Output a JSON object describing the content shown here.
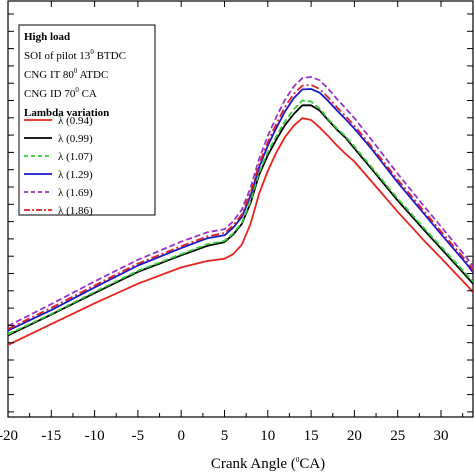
{
  "chart_data": {
    "type": "line",
    "xlabel": {
      "prefix": "Crank Angle (",
      "sup": "0",
      "suffix": "CA)"
    },
    "xlim": [
      -20,
      34
    ],
    "x_ticks": [
      "-20",
      "-15",
      "-10",
      "-5",
      "0",
      "5",
      "10",
      "15",
      "20",
      "25",
      "30"
    ],
    "ylim": [
      0,
      100
    ],
    "legend_position": "top-left",
    "annotations": [
      {
        "text": "High load",
        "bold": true
      },
      {
        "prefix": "SOI of pilot 13",
        "sup": "0",
        "suffix": " BTDC",
        "bold": false
      },
      {
        "prefix": "CNG IT 80",
        "sup": "0",
        "suffix": " ATDC",
        "bold": false
      },
      {
        "prefix": "CNG ID 70",
        "sup": "0",
        "suffix": " CA",
        "bold": false
      },
      {
        "text": "Lambda variation",
        "bold": true
      }
    ],
    "x": [
      -20,
      -15,
      -10,
      -5,
      0,
      3,
      5,
      6,
      7,
      8,
      9,
      10,
      11,
      12,
      13,
      14,
      15,
      16,
      17,
      18,
      19,
      20,
      22,
      25,
      28,
      30,
      33,
      34
    ],
    "series": [
      {
        "name": "λ (0.94)",
        "color": "#e8231d",
        "dash": "solid",
        "values": [
          34,
          39.5,
          45,
          50.2,
          54.5,
          56.2,
          56.8,
          58,
          60.5,
          66,
          74,
          80,
          85,
          89,
          92,
          94,
          93.5,
          91.5,
          89.2,
          86.7,
          84.5,
          82.5,
          77.2,
          69.2,
          61.7,
          57,
          49.7,
          47.2
        ]
      },
      {
        "name": "λ (0.99)",
        "color": "#000000",
        "dash": "solid",
        "values": [
          36.5,
          42,
          47.7,
          53.3,
          57.7,
          60.2,
          61.2,
          63.2,
          66,
          71.5,
          79,
          84.2,
          88.4,
          92.2,
          95.1,
          97.4,
          97.4,
          96,
          93.4,
          90.9,
          88.8,
          86,
          80.5,
          72.2,
          64.5,
          59.5,
          52,
          49.4
        ]
      },
      {
        "name": "λ (1.07)",
        "color": "#33cc33",
        "dash": "dash",
        "values": [
          36.8,
          42.2,
          48,
          53.6,
          58,
          60.6,
          61.5,
          63.5,
          66.3,
          72,
          79.6,
          85,
          89.3,
          93.2,
          96.3,
          98.7,
          98.4,
          96.5,
          93.7,
          91.2,
          89.2,
          86.5,
          81,
          72.7,
          65,
          60,
          52.5,
          50
        ]
      },
      {
        "name": "λ (1.29)",
        "color": "#1a1acc",
        "dash": "solid",
        "values": [
          37.8,
          43.2,
          49.2,
          55,
          59.6,
          62.2,
          63,
          65,
          67.8,
          73.5,
          81,
          86.7,
          91.5,
          95.8,
          99.3,
          101.6,
          101.7,
          100.7,
          98.5,
          96,
          93.7,
          91.2,
          85.8,
          77,
          68.8,
          63.3,
          55.3,
          52.3
        ]
      },
      {
        "name": "λ (1.69)",
        "color": "#9933cc",
        "dash": "dash",
        "values": [
          39,
          44.8,
          50.8,
          56.5,
          61.3,
          63.8,
          64.6,
          66.7,
          69.8,
          75.5,
          83.2,
          89.3,
          94.4,
          98.9,
          102.4,
          104.6,
          104.9,
          104,
          101.7,
          99,
          96.6,
          94,
          88.2,
          79.3,
          70.8,
          65.3,
          57,
          53.8
        ]
      },
      {
        "name": "λ (1.86)",
        "color": "#dd2222",
        "dash": "dashdot",
        "values": [
          38.2,
          43.8,
          49.7,
          55.5,
          60.1,
          62.7,
          63.6,
          65.6,
          68.5,
          74.2,
          81.8,
          87.6,
          92.6,
          97,
          100.4,
          102.6,
          102.8,
          101.7,
          99.4,
          96.8,
          94.5,
          92,
          86.4,
          77.7,
          69.5,
          64,
          56,
          53
        ]
      }
    ]
  }
}
